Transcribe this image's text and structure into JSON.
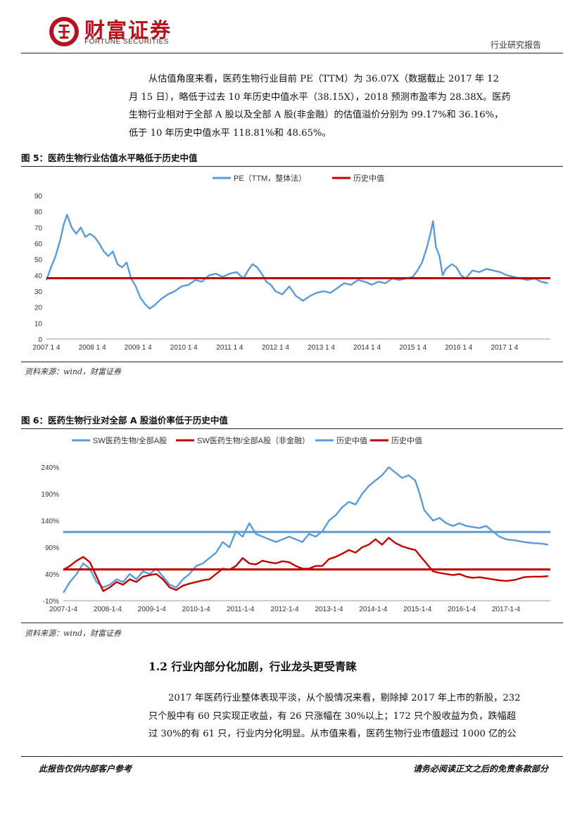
{
  "header": {
    "logo_cn": "财富证券",
    "logo_en": "FORTUNE SECURITIES",
    "report_type": "行业研究报告",
    "brand_color": "#b5121b"
  },
  "paragraph1": {
    "lines": [
      "从估值角度来看，医药生物行业目前 PE（TTM）为 36.07X（数据截止 2017 年 12",
      "月 15 日），略低于过去 10 年历史中值水平（38.15X），2018 预测市盈率为 28.38X。医药",
      "生物行业相对于全部 A 股以及全部 A 股(非金融）的估值溢价分别为 99.17%和 36.16%，",
      "低于 10 年历史中值水平 118.81%和 48.65%。"
    ]
  },
  "figure5": {
    "title": "图 5：医药生物行业估值水平略低于历史中值",
    "source": "资料来源：wind，财富证券"
  },
  "figure6": {
    "title": "图 6：医药生物行业对全部 A 股溢价率低于历史中值",
    "source": "资料来源：wind，财富证券"
  },
  "section": {
    "heading": "1.2 行业内部分化加剧，行业龙头更受青睐"
  },
  "paragraph2": {
    "lines": [
      "2017 年医药行业整体表现平淡，从个股情况来看，剔除掉 2017 年上市的新股，232",
      "只个股中有 60 只实现正收益，有 26 只涨幅在 30%以上；172 只个股收益为负，跌幅超",
      "过 30%的有 61 只，行业内分化明显。从市值来看，医药生物行业市值超过 1000 亿的公"
    ]
  },
  "footer": {
    "left": "此报告仅供内部客户参考",
    "right": "请务必阅读正文之后的免责条款部分"
  },
  "chart_data": [
    {
      "type": "line",
      "title": "医药生物行业估值水平略低于历史中值",
      "legend": [
        "PE（TTM，整体法）",
        "历史中值"
      ],
      "colors": [
        "#5b9bd5",
        "#c00000"
      ],
      "x_ticks": [
        "2007 1 4",
        "2008 1 4",
        "2009 1 4",
        "2010 1 4",
        "2011 1 4",
        "2012 1 4",
        "2013 1 4",
        "2014 1 4",
        "2015 1 4",
        "2016 1 4",
        "2017 1 4"
      ],
      "y_ticks": [
        "0",
        "10",
        "20",
        "30",
        "40",
        "50",
        "60",
        "70",
        "80",
        "90"
      ],
      "ylim": [
        0,
        90
      ],
      "x_range": [
        2007.0,
        2018.0
      ],
      "series": [
        {
          "name": "PE（TTM，整体法）",
          "points": [
            [
              2007.0,
              37
            ],
            [
              2007.1,
              45
            ],
            [
              2007.2,
              52
            ],
            [
              2007.3,
              62
            ],
            [
              2007.38,
              72
            ],
            [
              2007.45,
              78
            ],
            [
              2007.55,
              70
            ],
            [
              2007.65,
              66
            ],
            [
              2007.75,
              70
            ],
            [
              2007.85,
              64
            ],
            [
              2007.95,
              66
            ],
            [
              2008.05,
              64
            ],
            [
              2008.15,
              60
            ],
            [
              2008.25,
              55
            ],
            [
              2008.35,
              52
            ],
            [
              2008.45,
              55
            ],
            [
              2008.55,
              47
            ],
            [
              2008.65,
              45
            ],
            [
              2008.75,
              48
            ],
            [
              2008.85,
              38
            ],
            [
              2008.95,
              33
            ],
            [
              2009.05,
              26
            ],
            [
              2009.15,
              22
            ],
            [
              2009.25,
              19
            ],
            [
              2009.35,
              21
            ],
            [
              2009.5,
              25
            ],
            [
              2009.65,
              28
            ],
            [
              2009.8,
              30
            ],
            [
              2009.95,
              33
            ],
            [
              2010.1,
              34
            ],
            [
              2010.25,
              37
            ],
            [
              2010.4,
              36
            ],
            [
              2010.55,
              40
            ],
            [
              2010.7,
              41
            ],
            [
              2010.85,
              39
            ],
            [
              2011.0,
              41
            ],
            [
              2011.15,
              42
            ],
            [
              2011.3,
              38
            ],
            [
              2011.4,
              43
            ],
            [
              2011.5,
              47
            ],
            [
              2011.6,
              45
            ],
            [
              2011.7,
              41
            ],
            [
              2011.8,
              36
            ],
            [
              2011.9,
              34
            ],
            [
              2012.0,
              30
            ],
            [
              2012.15,
              28
            ],
            [
              2012.3,
              33
            ],
            [
              2012.45,
              27
            ],
            [
              2012.6,
              24
            ],
            [
              2012.75,
              27
            ],
            [
              2012.9,
              29
            ],
            [
              2013.05,
              30
            ],
            [
              2013.2,
              29
            ],
            [
              2013.35,
              32
            ],
            [
              2013.5,
              35
            ],
            [
              2013.65,
              34
            ],
            [
              2013.8,
              37
            ],
            [
              2013.95,
              36
            ],
            [
              2014.1,
              34
            ],
            [
              2014.25,
              36
            ],
            [
              2014.4,
              35
            ],
            [
              2014.55,
              38
            ],
            [
              2014.7,
              37
            ],
            [
              2014.85,
              38
            ],
            [
              2015.0,
              39
            ],
            [
              2015.1,
              43
            ],
            [
              2015.2,
              48
            ],
            [
              2015.3,
              57
            ],
            [
              2015.38,
              66
            ],
            [
              2015.44,
              74
            ],
            [
              2015.5,
              58
            ],
            [
              2015.58,
              52
            ],
            [
              2015.65,
              40
            ],
            [
              2015.72,
              44
            ],
            [
              2015.85,
              47
            ],
            [
              2015.95,
              45
            ],
            [
              2016.05,
              40
            ],
            [
              2016.15,
              38
            ],
            [
              2016.3,
              43
            ],
            [
              2016.45,
              42
            ],
            [
              2016.6,
              44
            ],
            [
              2016.75,
              43
            ],
            [
              2016.9,
              42
            ],
            [
              2017.05,
              40
            ],
            [
              2017.2,
              39
            ],
            [
              2017.35,
              38
            ],
            [
              2017.5,
              37
            ],
            [
              2017.65,
              38
            ],
            [
              2017.8,
              36
            ],
            [
              2017.95,
              35
            ]
          ]
        },
        {
          "name": "历史中值",
          "value": 38.15
        }
      ]
    },
    {
      "type": "line",
      "title": "医药生物行业对全部 A 股溢价率低于历史中值",
      "legend": [
        "SW医药生物/全部A股",
        "SW医药生物/全部A股（非金融）",
        "历史中值",
        "历史中值"
      ],
      "colors": [
        "#5b9bd5",
        "#c00000",
        "#5b9bd5",
        "#c00000"
      ],
      "x_ticks": [
        "2007-1-4",
        "2008-1-4",
        "2009-1-4",
        "2010-1-4",
        "2011-1-4",
        "2012-1-4",
        "2013-1-4",
        "2014-1-4",
        "2015-1-4",
        "2016-1-4",
        "2017-1-4"
      ],
      "y_ticks": [
        "-10%",
        "40%",
        "90%",
        "140%",
        "190%",
        "240%"
      ],
      "ylim": [
        -10,
        260
      ],
      "x_range": [
        2007.0,
        2018.0
      ],
      "series": [
        {
          "name": "SW医药生物/全部A股",
          "points": [
            [
              2007.0,
              5
            ],
            [
              2007.15,
              25
            ],
            [
              2007.3,
              40
            ],
            [
              2007.45,
              60
            ],
            [
              2007.6,
              50
            ],
            [
              2007.75,
              25
            ],
            [
              2007.9,
              15
            ],
            [
              2008.05,
              20
            ],
            [
              2008.2,
              30
            ],
            [
              2008.35,
              25
            ],
            [
              2008.5,
              40
            ],
            [
              2008.65,
              30
            ],
            [
              2008.8,
              45
            ],
            [
              2008.95,
              40
            ],
            [
              2009.1,
              50
            ],
            [
              2009.25,
              35
            ],
            [
              2009.4,
              20
            ],
            [
              2009.55,
              15
            ],
            [
              2009.7,
              30
            ],
            [
              2009.85,
              40
            ],
            [
              2010.0,
              55
            ],
            [
              2010.15,
              60
            ],
            [
              2010.3,
              70
            ],
            [
              2010.45,
              80
            ],
            [
              2010.6,
              100
            ],
            [
              2010.75,
              90
            ],
            [
              2010.9,
              120
            ],
            [
              2011.05,
              110
            ],
            [
              2011.2,
              135
            ],
            [
              2011.35,
              115
            ],
            [
              2011.5,
              110
            ],
            [
              2011.65,
              105
            ],
            [
              2011.8,
              100
            ],
            [
              2011.95,
              105
            ],
            [
              2012.1,
              110
            ],
            [
              2012.25,
              105
            ],
            [
              2012.4,
              100
            ],
            [
              2012.55,
              115
            ],
            [
              2012.7,
              110
            ],
            [
              2012.85,
              120
            ],
            [
              2013.0,
              140
            ],
            [
              2013.15,
              150
            ],
            [
              2013.3,
              165
            ],
            [
              2013.45,
              175
            ],
            [
              2013.6,
              170
            ],
            [
              2013.75,
              190
            ],
            [
              2013.9,
              205
            ],
            [
              2014.05,
              215
            ],
            [
              2014.2,
              225
            ],
            [
              2014.35,
              240
            ],
            [
              2014.5,
              230
            ],
            [
              2014.65,
              220
            ],
            [
              2014.8,
              225
            ],
            [
              2014.95,
              215
            ],
            [
              2015.05,
              190
            ],
            [
              2015.15,
              160
            ],
            [
              2015.25,
              150
            ],
            [
              2015.35,
              140
            ],
            [
              2015.5,
              145
            ],
            [
              2015.65,
              135
            ],
            [
              2015.8,
              130
            ],
            [
              2015.95,
              135
            ],
            [
              2016.1,
              130
            ],
            [
              2016.25,
              128
            ],
            [
              2016.4,
              126
            ],
            [
              2016.55,
              130
            ],
            [
              2016.7,
              120
            ],
            [
              2016.85,
              110
            ],
            [
              2017.0,
              105
            ],
            [
              2017.2,
              103
            ],
            [
              2017.4,
              100
            ],
            [
              2017.6,
              98
            ],
            [
              2017.8,
              97
            ],
            [
              2017.95,
              95
            ]
          ]
        },
        {
          "name": "SW医药生物/全部A股（非金融）",
          "points": [
            [
              2007.0,
              48
            ],
            [
              2007.15,
              55
            ],
            [
              2007.3,
              65
            ],
            [
              2007.45,
              72
            ],
            [
              2007.6,
              62
            ],
            [
              2007.75,
              35
            ],
            [
              2007.9,
              8
            ],
            [
              2008.05,
              15
            ],
            [
              2008.2,
              25
            ],
            [
              2008.35,
              20
            ],
            [
              2008.5,
              30
            ],
            [
              2008.65,
              25
            ],
            [
              2008.8,
              35
            ],
            [
              2008.95,
              38
            ],
            [
              2009.1,
              40
            ],
            [
              2009.25,
              30
            ],
            [
              2009.4,
              15
            ],
            [
              2009.55,
              10
            ],
            [
              2009.7,
              18
            ],
            [
              2009.85,
              22
            ],
            [
              2010.0,
              25
            ],
            [
              2010.15,
              28
            ],
            [
              2010.3,
              30
            ],
            [
              2010.45,
              40
            ],
            [
              2010.6,
              50
            ],
            [
              2010.75,
              48
            ],
            [
              2010.9,
              55
            ],
            [
              2011.05,
              70
            ],
            [
              2011.2,
              60
            ],
            [
              2011.35,
              58
            ],
            [
              2011.5,
              65
            ],
            [
              2011.65,
              62
            ],
            [
              2011.8,
              60
            ],
            [
              2011.95,
              64
            ],
            [
              2012.1,
              62
            ],
            [
              2012.25,
              55
            ],
            [
              2012.4,
              50
            ],
            [
              2012.55,
              50
            ],
            [
              2012.7,
              55
            ],
            [
              2012.85,
              55
            ],
            [
              2013.0,
              68
            ],
            [
              2013.15,
              72
            ],
            [
              2013.3,
              78
            ],
            [
              2013.45,
              85
            ],
            [
              2013.6,
              80
            ],
            [
              2013.75,
              90
            ],
            [
              2013.9,
              95
            ],
            [
              2014.05,
              105
            ],
            [
              2014.2,
              95
            ],
            [
              2014.35,
              108
            ],
            [
              2014.5,
              98
            ],
            [
              2014.65,
              92
            ],
            [
              2014.8,
              88
            ],
            [
              2014.95,
              85
            ],
            [
              2015.05,
              75
            ],
            [
              2015.15,
              65
            ],
            [
              2015.25,
              55
            ],
            [
              2015.35,
              45
            ],
            [
              2015.5,
              42
            ],
            [
              2015.65,
              40
            ],
            [
              2015.8,
              38
            ],
            [
              2015.95,
              40
            ],
            [
              2016.1,
              35
            ],
            [
              2016.25,
              33
            ],
            [
              2016.4,
              34
            ],
            [
              2016.55,
              32
            ],
            [
              2016.7,
              30
            ],
            [
              2016.85,
              28
            ],
            [
              2017.0,
              27
            ],
            [
              2017.2,
              29
            ],
            [
              2017.4,
              34
            ],
            [
              2017.6,
              35
            ],
            [
              2017.8,
              35
            ],
            [
              2017.95,
              36
            ]
          ]
        },
        {
          "name": "历史中值",
          "value": 118.81
        },
        {
          "name": "历史中值",
          "value": 48.65
        }
      ]
    }
  ]
}
